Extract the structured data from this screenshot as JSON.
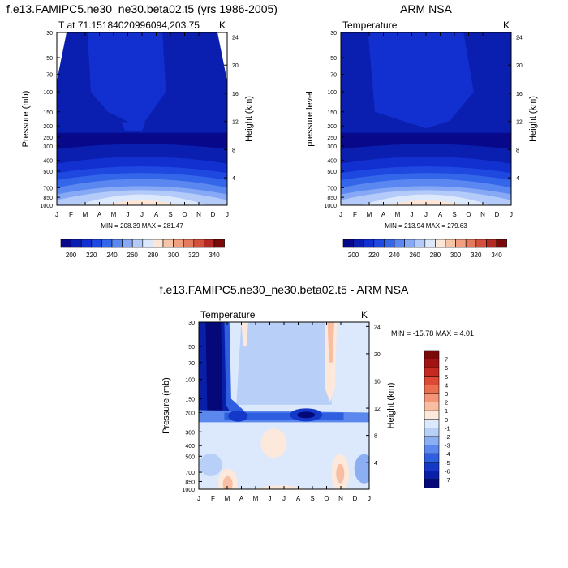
{
  "chart_data": [
    {
      "type": "heatmap",
      "title": "f.e13.FAMIPC5.ne30_ne30.beta02.t5 (yrs 1986-2005)",
      "subtitle_left": "T at 71.15184020996094,203.75",
      "subtitle_right": "K",
      "xlabel": "",
      "ylabel": "Pressure (mb)",
      "ylabel_right": "Height (km)",
      "x": [
        "J",
        "F",
        "M",
        "A",
        "M",
        "J",
        "J",
        "A",
        "S",
        "O",
        "N",
        "D",
        "J"
      ],
      "y_ticks": [
        "30",
        "50",
        "70",
        "100",
        "150",
        "200",
        "250",
        "300",
        "400",
        "500",
        "700",
        "850",
        "1000"
      ],
      "y_right_ticks": [
        "24",
        "20",
        "16",
        "12",
        "8",
        "4"
      ],
      "min_max_text": "MIN = 208.39 MAX = 281.47",
      "colorbar_labels": [
        "200",
        "220",
        "240",
        "260",
        "280",
        "300",
        "320",
        "340"
      ],
      "ylim": [
        1000,
        30
      ]
    },
    {
      "type": "heatmap",
      "title": "ARM NSA",
      "subtitle_left": "Temperature",
      "subtitle_right": "K",
      "xlabel": "",
      "ylabel": "pressure level",
      "ylabel_right": "Height (km)",
      "x": [
        "J",
        "F",
        "M",
        "A",
        "M",
        "J",
        "J",
        "A",
        "S",
        "O",
        "N",
        "D",
        "J"
      ],
      "y_ticks": [
        "30",
        "50",
        "70",
        "100",
        "150",
        "200",
        "250",
        "300",
        "400",
        "500",
        "700",
        "850",
        "1000"
      ],
      "y_right_ticks": [
        "24",
        "20",
        "16",
        "12",
        "8",
        "4"
      ],
      "min_max_text": "MIN = 213.94 MAX = 279.63",
      "colorbar_labels": [
        "200",
        "220",
        "240",
        "260",
        "280",
        "300",
        "320",
        "340"
      ],
      "ylim": [
        1000,
        30
      ]
    },
    {
      "type": "heatmap",
      "title": "f.e13.FAMIPC5.ne30_ne30.beta02.t5 - ARM NSA",
      "subtitle_left": "Temperature",
      "subtitle_right": "K",
      "xlabel": "",
      "ylabel": "Pressure (mb)",
      "ylabel_right": "Height (km)",
      "x": [
        "J",
        "F",
        "M",
        "A",
        "M",
        "J",
        "J",
        "A",
        "S",
        "O",
        "N",
        "D",
        "J"
      ],
      "y_ticks": [
        "30",
        "50",
        "70",
        "100",
        "150",
        "200",
        "300",
        "400",
        "500",
        "700",
        "850",
        "1000"
      ],
      "y_right_ticks": [
        "24",
        "20",
        "16",
        "12",
        "8",
        "4"
      ],
      "min_max_text": "MIN = -15.78 MAX =   4.01",
      "colorbar_labels": [
        "7",
        "6",
        "5",
        "4",
        "3",
        "2",
        "1",
        "0",
        "-1",
        "-2",
        "-3",
        "-4",
        "-5",
        "-6",
        "-7"
      ],
      "ylim": [
        1000,
        30
      ]
    }
  ],
  "colors": {
    "abs_scale": [
      "#08088a",
      "#0a1fb0",
      "#1230d0",
      "#1e48e0",
      "#3366e8",
      "#5a88f0",
      "#86a8f5",
      "#b4caf8",
      "#dce8fb",
      "#fde6d6",
      "#f6c4a6",
      "#f0a080",
      "#e47a5c",
      "#d2503c",
      "#b42a22",
      "#7a0a0a"
    ],
    "diff_scale": [
      "#7a0a0a",
      "#a01414",
      "#c42a20",
      "#dc4a34",
      "#ec6e50",
      "#f49676",
      "#f8bea4",
      "#fde8dc",
      "#dce8fb",
      "#b8cff8",
      "#8caef2",
      "#5a88ec",
      "#2e5fe0",
      "#1438c8",
      "#0a1fa8",
      "#040878"
    ]
  }
}
